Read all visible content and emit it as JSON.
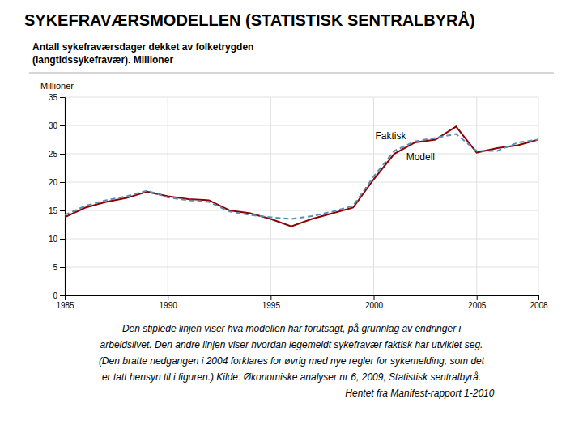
{
  "chart_data": {
    "type": "line",
    "title": "SYKEFRAVÆRSMODELLEN (STATISTISK SENTRALBYRÅ)",
    "subtitle": [
      "Antall sykefraværsdager dekket av folketrygden",
      "(langtidssykefravær). Millioner"
    ],
    "y_label": "Millioner",
    "x": [
      1985,
      1986,
      1987,
      1988,
      1989,
      1990,
      1991,
      1992,
      1993,
      1994,
      1995,
      1996,
      1997,
      1998,
      1999,
      2000,
      2001,
      2002,
      2003,
      2004,
      2005,
      2006,
      2007,
      2008
    ],
    "series": [
      {
        "color": "#8B0000",
        "line_style": "solid",
        "values": [
          13.8,
          15.5,
          16.5,
          17.2,
          18.3,
          17.5,
          17.0,
          16.8,
          15.0,
          14.5,
          13.5,
          12.2,
          13.5,
          14.5,
          15.5,
          20.5,
          25.0,
          27.0,
          27.5,
          29.8,
          25.2,
          26.0,
          26.5,
          27.5
        ]
      },
      {
        "color": "#5B8DB8",
        "line_style": "dashed",
        "values": [
          14.2,
          15.8,
          16.8,
          17.5,
          18.5,
          17.3,
          16.8,
          16.5,
          14.8,
          14.2,
          13.8,
          13.5,
          14.0,
          14.8,
          15.8,
          21.0,
          25.5,
          27.2,
          27.8,
          28.5,
          25.5,
          25.5,
          27.0,
          27.5
        ]
      }
    ],
    "annotations": [
      {
        "text": "Faktisk",
        "x": 2000.0,
        "y": 27.2
      },
      {
        "text": "Modell",
        "x": 2001.5,
        "y": 25.5
      }
    ],
    "xlim": [
      1985,
      2008
    ],
    "xticks": [
      1985,
      1990,
      1995,
      2000,
      2005,
      2008
    ],
    "ylim": [
      0,
      35
    ],
    "yticks": [
      0,
      5,
      10,
      15,
      20,
      25,
      30,
      35
    ],
    "grid": true,
    "caption": [
      "Den stiplede linjen viser hva modellen har forutsagt, på grunnlag av endringer i",
      "arbeidslivet. Den andre linjen viser hvordan legemeldt sykefravær faktisk har utviklet seg.",
      "(Den bratte nedgangen i 2004 forklares for øvrig med nye regler for sykemelding, som det",
      "er tatt hensyn til i figuren.) Kilde: Økonomiske analyser nr 6, 2009, Statistisk sentralbyrå.",
      "Hentet fra Manifest-rapport 1-2010"
    ]
  }
}
